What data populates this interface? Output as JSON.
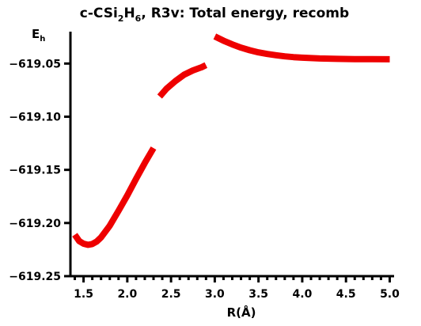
{
  "chart_data": {
    "type": "line",
    "title_parts": [
      "c-CSi",
      "2",
      "H",
      "6",
      ", R3v: Total energy, recomb"
    ],
    "ylabel_main": "E",
    "ylabel_sub": "h",
    "xlabel": "R(Å)",
    "xlim": [
      1.35,
      5.05
    ],
    "ylim": [
      -619.25,
      -619.02
    ],
    "x_ticks": [
      1.5,
      2.0,
      2.5,
      3.0,
      3.5,
      4.0,
      4.5,
      5.0
    ],
    "x_tick_labels": [
      "1.5",
      "2.0",
      "2.5",
      "3.0",
      "3.5",
      "4.0",
      "4.5",
      "5.0"
    ],
    "x_minor_ticks": [
      1.4,
      1.6,
      1.7,
      1.8,
      1.9,
      2.1,
      2.2,
      2.3,
      2.4,
      2.6,
      2.7,
      2.8,
      2.9,
      3.1,
      3.2,
      3.3,
      3.4,
      3.6,
      3.7,
      3.8,
      3.9,
      4.1,
      4.2,
      4.3,
      4.4,
      4.6,
      4.7,
      4.8,
      4.9
    ],
    "y_ticks": [
      -619.25,
      -619.2,
      -619.15,
      -619.1,
      -619.05
    ],
    "y_tick_labels": [
      "−619.25",
      "−619.20",
      "−619.15",
      "−619.10",
      "−619.05"
    ],
    "color": "#ee0000",
    "series": [
      {
        "segments": [
          {
            "x": [
              1.4,
              1.45,
              1.5,
              1.55,
              1.6,
              1.65,
              1.7,
              1.8,
              1.9,
              2.0,
              2.1,
              2.2,
              2.3
            ],
            "y": [
              -619.211,
              -619.217,
              -619.2195,
              -619.2205,
              -619.2198,
              -619.2175,
              -619.2135,
              -619.2025,
              -619.1885,
              -619.174,
              -619.1585,
              -619.1435,
              -619.1295
            ]
          },
          {
            "x": [
              2.37,
              2.45,
              2.55,
              2.65,
              2.75,
              2.85,
              2.9
            ],
            "y": [
              -619.081,
              -619.0735,
              -619.0665,
              -619.0605,
              -619.0565,
              -619.0535,
              -619.0515
            ]
          },
          {
            "x": [
              3.0,
              3.1,
              3.2,
              3.3,
              3.4,
              3.5,
              3.6,
              3.7,
              3.8,
              3.9,
              4.0,
              4.2,
              4.4,
              4.6,
              4.8,
              5.0
            ],
            "y": [
              -619.0245,
              -619.0285,
              -619.032,
              -619.035,
              -619.0375,
              -619.0395,
              -619.041,
              -619.0422,
              -619.0432,
              -619.044,
              -619.0445,
              -619.0452,
              -619.0456,
              -619.0458,
              -619.0459,
              -619.046
            ]
          }
        ]
      }
    ]
  }
}
